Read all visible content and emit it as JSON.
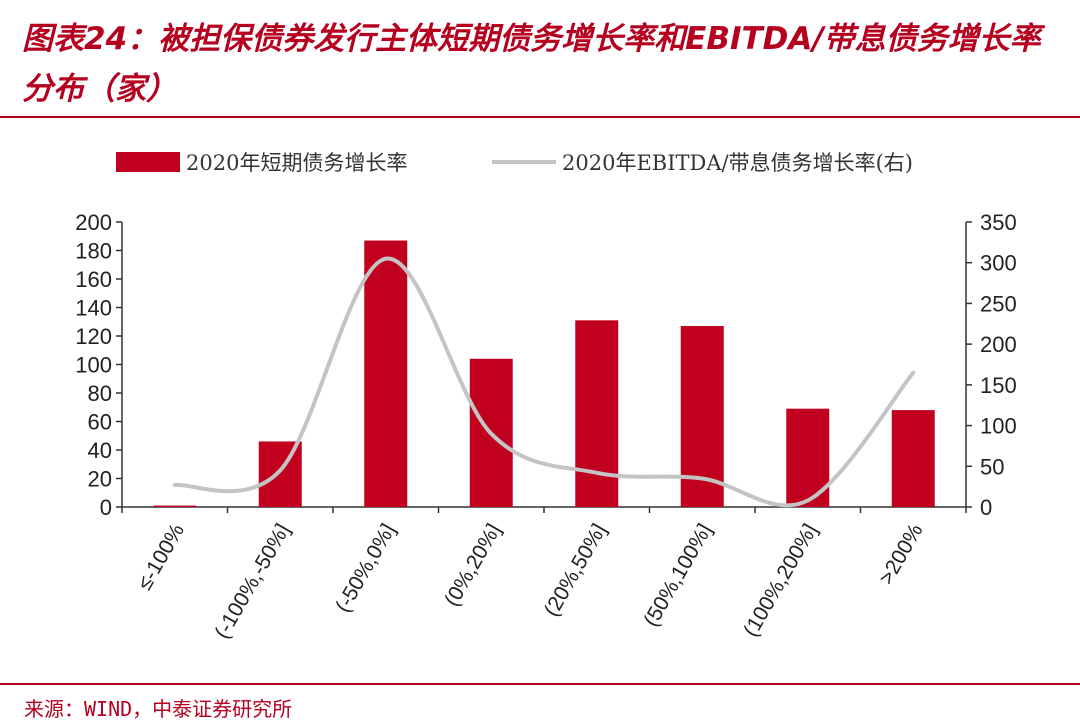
{
  "title": "图表24：被担保债券发行主体短期债务增长率和EBITDA/带息债务增长率分布（家）",
  "source": "来源：WIND，中泰证券研究所",
  "colors": {
    "bar": "#c0001e",
    "line": "#c4c4c4",
    "brand": "#b5001f"
  },
  "chart_data": {
    "type": "bar",
    "title": "图表24：被担保债券发行主体短期债务增长率和EBITDA/带息债务增长率分布（家）",
    "categories": [
      "≤-100%",
      "(-100%,-50%]",
      "(-50%,0%]",
      "(0%,20%]",
      "(20%,50%]",
      "(50%,100%]",
      "(100%,200%]",
      ">200%"
    ],
    "series": [
      {
        "name": "2020年短期债务增长率",
        "type": "bar",
        "axis": "left",
        "values": [
          1,
          46,
          187,
          104,
          131,
          127,
          69,
          68
        ]
      },
      {
        "name": "2020年EBITDA/带息债务增长率(右)",
        "type": "line",
        "axis": "right",
        "values": [
          27,
          45,
          305,
          90,
          42,
          35,
          8,
          165
        ]
      }
    ],
    "ylim_left": [
      0,
      200
    ],
    "yticks_left": [
      0,
      20,
      40,
      60,
      80,
      100,
      120,
      140,
      160,
      180,
      200
    ],
    "ylim_right": [
      0,
      350
    ],
    "yticks_right": [
      0,
      50,
      100,
      150,
      200,
      250,
      300,
      350
    ],
    "grid": false,
    "legend": "top"
  }
}
